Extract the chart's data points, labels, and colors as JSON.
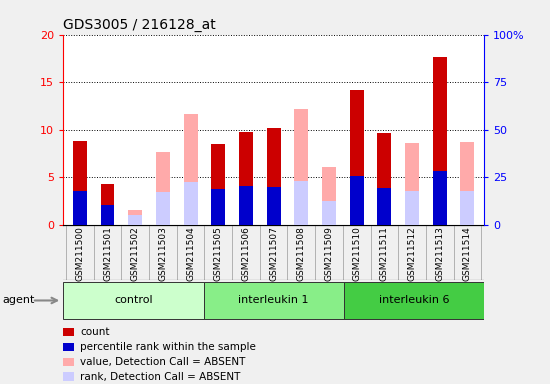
{
  "title": "GDS3005 / 216128_at",
  "samples": [
    "GSM211500",
    "GSM211501",
    "GSM211502",
    "GSM211503",
    "GSM211504",
    "GSM211505",
    "GSM211506",
    "GSM211507",
    "GSM211508",
    "GSM211509",
    "GSM211510",
    "GSM211511",
    "GSM211512",
    "GSM211513",
    "GSM211514"
  ],
  "count_values": [
    8.8,
    4.3,
    0.0,
    0.0,
    0.0,
    8.5,
    9.8,
    10.2,
    0.0,
    0.0,
    14.2,
    9.6,
    0.0,
    17.6,
    0.0
  ],
  "rank_values": [
    3.5,
    2.1,
    0.0,
    0.0,
    0.0,
    3.7,
    4.1,
    4.0,
    0.0,
    0.0,
    5.1,
    3.9,
    0.0,
    5.6,
    0.0
  ],
  "absent_val_values": [
    0.0,
    0.0,
    1.5,
    7.6,
    11.6,
    0.0,
    0.0,
    0.0,
    12.2,
    6.1,
    0.0,
    0.0,
    8.6,
    0.0,
    8.7
  ],
  "absent_rank_values": [
    0.0,
    0.0,
    1.0,
    3.4,
    4.5,
    0.0,
    0.0,
    0.0,
    4.6,
    2.5,
    0.0,
    0.0,
    3.5,
    0.0,
    3.5
  ],
  "groups": [
    {
      "label": "control",
      "start": 0,
      "end": 4,
      "color": "#ccffcc"
    },
    {
      "label": "interleukin 1",
      "start": 5,
      "end": 9,
      "color": "#88ee88"
    },
    {
      "label": "interleukin 6",
      "start": 10,
      "end": 14,
      "color": "#44cc44"
    }
  ],
  "ylim_left": [
    0,
    20
  ],
  "ylim_right": [
    0,
    100
  ],
  "yticks_left": [
    0,
    5,
    10,
    15,
    20
  ],
  "yticks_right": [
    0,
    25,
    50,
    75,
    100
  ],
  "ytick_right_labels": [
    "0",
    "25",
    "50",
    "75",
    "100%"
  ],
  "color_count": "#cc0000",
  "color_rank": "#0000cc",
  "color_absent_val": "#ffaaaa",
  "color_absent_rank": "#ccccff",
  "bar_width": 0.5,
  "legend_labels": [
    "count",
    "percentile rank within the sample",
    "value, Detection Call = ABSENT",
    "rank, Detection Call = ABSENT"
  ],
  "fig_bg": "#f0f0f0",
  "plot_bg": "#ffffff",
  "xtick_bg": "#c8c8c8",
  "title_fontsize": 10
}
